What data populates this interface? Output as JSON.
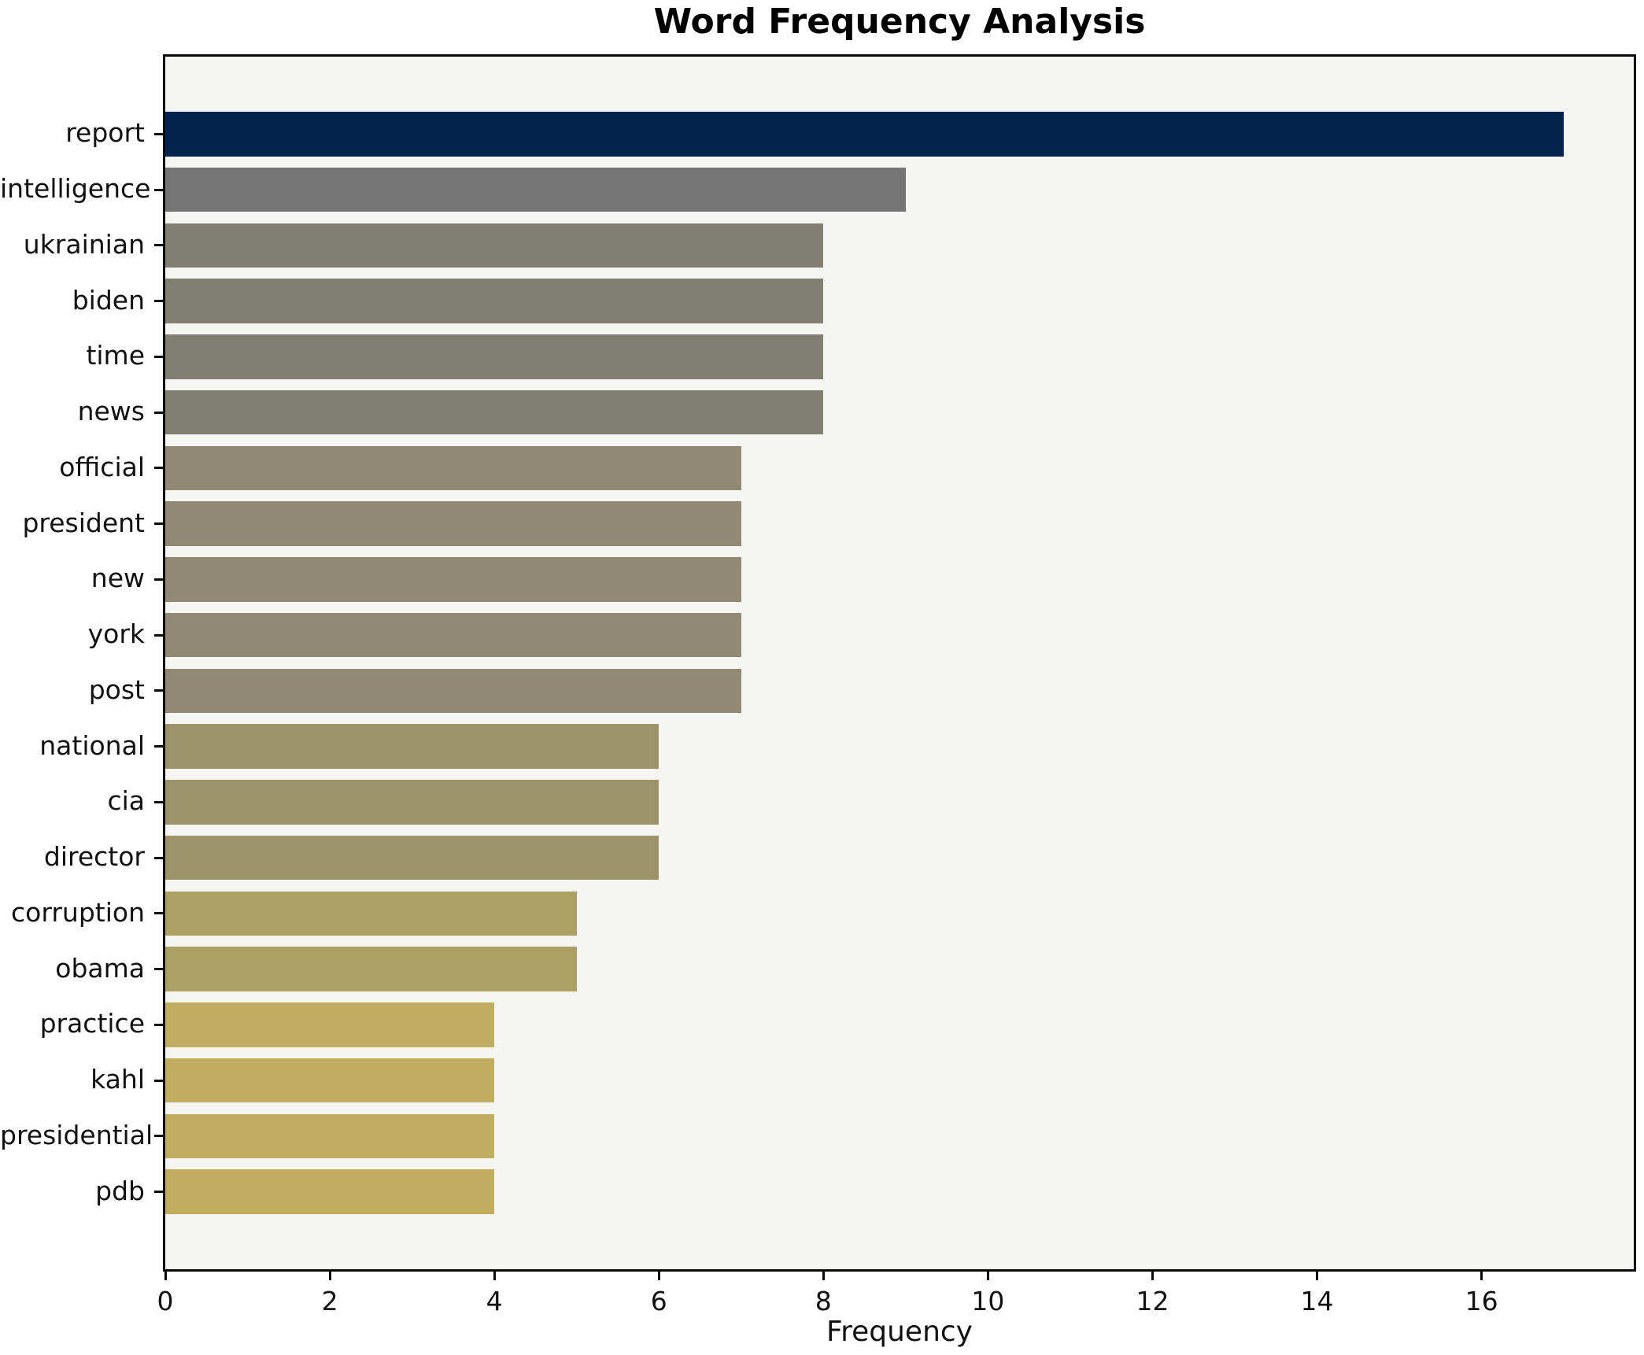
{
  "title": "Word Frequency Analysis",
  "chart_data": {
    "type": "bar",
    "orientation": "horizontal",
    "title": "Word Frequency Analysis",
    "xlabel": "Frequency",
    "ylabel": "",
    "categories": [
      "report",
      "intelligence",
      "ukrainian",
      "biden",
      "time",
      "news",
      "official",
      "president",
      "new",
      "york",
      "post",
      "national",
      "cia",
      "director",
      "corruption",
      "obama",
      "practice",
      "kahl",
      "presidential",
      "pdb"
    ],
    "values": [
      17,
      9,
      8,
      8,
      8,
      8,
      7,
      7,
      7,
      7,
      7,
      6,
      6,
      6,
      5,
      5,
      4,
      4,
      4,
      4
    ],
    "bar_colors": [
      "#03234c",
      "#757575",
      "#817e74",
      "#817e74",
      "#817e74",
      "#817e74",
      "#908a74",
      "#908a74",
      "#908a74",
      "#908a74",
      "#908a74",
      "#9c936b",
      "#9c936b",
      "#9c936b",
      "#ada065",
      "#ada065",
      "#c0ad60",
      "#c0ad60",
      "#c0ad60",
      "#c0ad60"
    ],
    "xticks": [
      0,
      2,
      4,
      6,
      8,
      10,
      12,
      14,
      16
    ],
    "xlim": [
      0,
      17.85
    ],
    "grid": false,
    "legend": null,
    "plot_bg": "#f5f5f4",
    "figure_bg": "#ffffff",
    "bar_label_color": "#111111"
  }
}
